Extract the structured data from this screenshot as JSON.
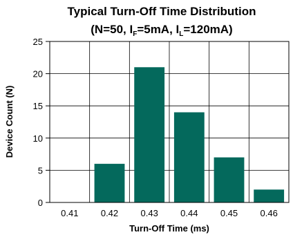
{
  "chart_data": {
    "type": "bar",
    "title_line1": "Typical Turn-Off Time Distribution",
    "title_line2": {
      "prefix": "(N=50, I",
      "sub1": "F",
      "mid": "=5mA, I",
      "sub2": "L",
      "suffix": "=120mA)"
    },
    "xlabel": "Turn-Off Time (ms)",
    "ylabel": "Device Count (N)",
    "categories": [
      "0.41",
      "0.42",
      "0.43",
      "0.44",
      "0.45",
      "0.46"
    ],
    "values": [
      0,
      6,
      21,
      14,
      7,
      2
    ],
    "ylim": [
      0,
      25
    ],
    "yticks": [
      0,
      5,
      10,
      15,
      20,
      25
    ],
    "grid": true,
    "bar_color": "#04695c"
  }
}
